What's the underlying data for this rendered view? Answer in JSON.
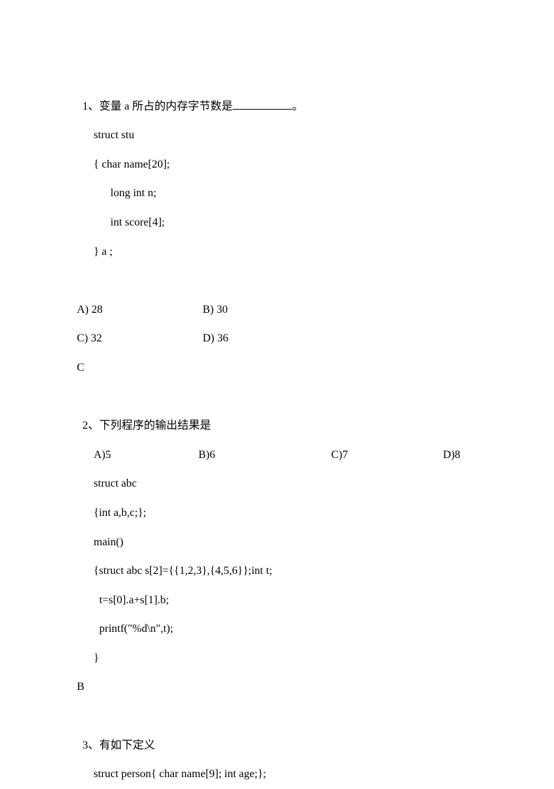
{
  "q1": {
    "number": "1、",
    "stem_before": "变量 a 所占的内存字节数是",
    "stem_after": "。",
    "code": [
      "struct stu",
      "{ char name[20];",
      "long int n;",
      "int score[4];",
      "} a ;"
    ],
    "options": {
      "A": "A) 28",
      "B": "B) 30",
      "C": "C) 32",
      "D": "D) 36"
    },
    "answer": "C"
  },
  "q2": {
    "number": "2、",
    "stem": "下列程序的输出结果是",
    "options": {
      "A": "A)5",
      "B": "B)6",
      "C": "C)7",
      "D": "D)8"
    },
    "code": [
      "struct abc",
      "{int a,b,c;};",
      "main()",
      "{struct abc s[2]={{1,2,3},{4,5,6}};int t;",
      "  t=s[0].a+s[1].b;",
      "  printf(\"%d\\n\",t);",
      "}"
    ],
    "answer": "B"
  },
  "q3": {
    "number": "3、",
    "stem": "有如下定义",
    "code": [
      "struct person{ char name[9]; int age;};"
    ]
  }
}
